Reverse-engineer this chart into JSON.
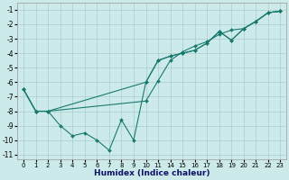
{
  "xlabel": "Humidex (Indice chaleur)",
  "background_color": "#cceaea",
  "grid_color": "#aacccc",
  "line_color": "#1a7a6e",
  "ylim": [
    -11.3,
    -0.5
  ],
  "yticks": [
    -11,
    -10,
    -9,
    -8,
    -7,
    -6,
    -5,
    -4,
    -3,
    -2,
    -1
  ],
  "xtick_labels": [
    "0",
    "1",
    "2",
    "3",
    "4",
    "5",
    "6",
    "7",
    "8",
    "9",
    "10",
    "11",
    "14",
    "15",
    "16",
    "17",
    "18",
    "19",
    "20",
    "21",
    "22",
    "23"
  ],
  "series": [
    {
      "xi": [
        0,
        1,
        2,
        3,
        4,
        5,
        6,
        7,
        8,
        9,
        10,
        11,
        12,
        13,
        14,
        15,
        16,
        17,
        18,
        19,
        20,
        21
      ],
      "y": [
        -6.5,
        -8.0,
        -8.0,
        -9.0,
        -9.7,
        -9.5,
        -10.0,
        -10.7,
        -8.6,
        -10.0,
        -6.0,
        -4.5,
        -4.2,
        -4.0,
        -3.8,
        -3.3,
        -2.5,
        -3.1,
        -2.3,
        -1.8,
        -1.2,
        -1.1
      ]
    },
    {
      "xi": [
        0,
        1,
        2,
        10,
        11,
        12,
        13,
        14,
        15,
        16,
        17,
        18,
        19,
        20,
        21
      ],
      "y": [
        -6.5,
        -8.0,
        -8.0,
        -6.0,
        -4.5,
        -4.2,
        -4.0,
        -3.8,
        -3.3,
        -2.5,
        -3.1,
        -2.3,
        -1.8,
        -1.2,
        -1.1
      ]
    },
    {
      "xi": [
        0,
        1,
        2,
        10,
        11,
        12,
        13,
        14,
        15,
        16,
        17,
        18,
        19,
        20,
        21
      ],
      "y": [
        -6.5,
        -8.0,
        -8.0,
        -7.3,
        -5.9,
        -4.5,
        -3.9,
        -3.5,
        -3.2,
        -2.7,
        -2.4,
        -2.3,
        -1.8,
        -1.2,
        -1.1
      ]
    }
  ]
}
